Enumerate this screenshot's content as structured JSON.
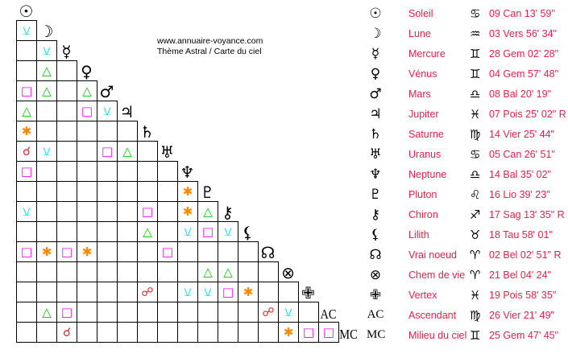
{
  "header": {
    "site": "www.annuaire-voyance.com",
    "subtitle": "Thème Astral / Carte du ciel"
  },
  "aspect_styles": {
    "conjunction": {
      "glyph": "☌",
      "color": "#ee2233"
    },
    "opposition": {
      "glyph": "☍",
      "color": "#ee2222"
    },
    "trine": {
      "glyph": "△",
      "color": "#00cc00"
    },
    "square": {
      "glyph": "□",
      "color": "#ff00ff"
    },
    "sextile": {
      "glyph": "✱",
      "color": "#ff8800"
    },
    "semisextile": {
      "glyph": "⚺",
      "color": "#00e0e0"
    }
  },
  "bodies": [
    {
      "glyph": "☉",
      "name": "Soleil",
      "sign": "♋",
      "position": "09 Can 13' 59\""
    },
    {
      "glyph": "☽",
      "name": "Lune",
      "sign": "♒",
      "position": "03 Vers 56' 34\""
    },
    {
      "glyph": "☿",
      "name": "Mercure",
      "sign": "♊",
      "position": "28 Gem 02' 28\""
    },
    {
      "glyph": "♀",
      "name": "Vénus",
      "sign": "♊",
      "position": "04 Gem 57' 48\""
    },
    {
      "glyph": "♂",
      "name": "Mars",
      "sign": "♎",
      "position": "08 Bal 20' 19\""
    },
    {
      "glyph": "♃",
      "name": "Jupiter",
      "sign": "♓",
      "position": "07 Pois 25' 02\" R"
    },
    {
      "glyph": "♄",
      "name": "Saturne",
      "sign": "♍",
      "position": "14 Vier 25' 44\""
    },
    {
      "glyph": "♅",
      "name": "Uranus",
      "sign": "♋",
      "position": "05 Can 26' 51\""
    },
    {
      "glyph": "♆",
      "name": "Neptune",
      "sign": "♎",
      "position": "14 Bal 35' 02\""
    },
    {
      "glyph": "♇",
      "name": "Pluton",
      "sign": "♌",
      "position": "16 Lio 39' 23\""
    },
    {
      "glyph": "⚷",
      "name": "Chiron",
      "sign": "♐",
      "position": "17 Sag 13' 35\" R"
    },
    {
      "glyph": "⚸",
      "name": "Lilith",
      "sign": "♉",
      "position": "18 Tau 58' 01\""
    },
    {
      "glyph": "☊",
      "name": "Vrai noeud",
      "sign": "♈",
      "position": "02 Bel 02' 51\" R"
    },
    {
      "glyph": "⊗",
      "name": "Chem de vie",
      "sign": "♈",
      "position": "21 Bel 04' 24\""
    },
    {
      "glyph": "✙",
      "name": "Vertex",
      "sign": "♓",
      "position": "19 Pois 58' 35\""
    },
    {
      "glyph": "AC",
      "name": "Ascendant",
      "sign": "♍",
      "position": "26 Vier 21' 49\""
    },
    {
      "glyph": "MC",
      "name": "Milieu du ciel",
      "sign": "♊",
      "position": "25 Gem 47' 45\""
    }
  ],
  "aspect_grid": [
    [
      [
        0,
        "semisextile"
      ]
    ],
    [
      [
        1,
        "semisextile"
      ]
    ],
    [
      [
        1,
        "trine"
      ]
    ],
    [
      [
        0,
        "square"
      ],
      [
        1,
        "trine"
      ],
      [
        3,
        "trine"
      ]
    ],
    [
      [
        0,
        "trine"
      ],
      [
        3,
        "square"
      ],
      [
        4,
        "semisextile"
      ]
    ],
    [
      [
        0,
        "sextile"
      ]
    ],
    [
      [
        0,
        "conjunction"
      ],
      [
        1,
        "semisextile"
      ],
      [
        4,
        "square"
      ],
      [
        5,
        "trine"
      ]
    ],
    [
      [
        0,
        "square"
      ]
    ],
    [
      [
        8,
        "sextile"
      ]
    ],
    [
      [
        0,
        "semisextile"
      ],
      [
        6,
        "square"
      ],
      [
        8,
        "sextile"
      ],
      [
        9,
        "trine"
      ]
    ],
    [
      [
        6,
        "trine"
      ],
      [
        8,
        "semisextile"
      ],
      [
        9,
        "square"
      ],
      [
        10,
        "semisextile"
      ]
    ],
    [
      [
        0,
        "square"
      ],
      [
        1,
        "sextile"
      ],
      [
        2,
        "square"
      ],
      [
        3,
        "sextile"
      ],
      [
        7,
        "square"
      ]
    ],
    [
      [
        9,
        "trine"
      ],
      [
        10,
        "trine"
      ]
    ],
    [
      [
        6,
        "opposition"
      ],
      [
        8,
        "semisextile"
      ],
      [
        9,
        "semisextile"
      ],
      [
        10,
        "square"
      ],
      [
        11,
        "sextile"
      ]
    ],
    [
      [
        1,
        "trine"
      ],
      [
        2,
        "square"
      ],
      [
        12,
        "opposition"
      ],
      [
        13,
        "semisextile"
      ]
    ],
    [
      [
        2,
        "conjunction"
      ],
      [
        13,
        "sextile"
      ],
      [
        14,
        "square"
      ],
      [
        15,
        "square"
      ]
    ]
  ]
}
